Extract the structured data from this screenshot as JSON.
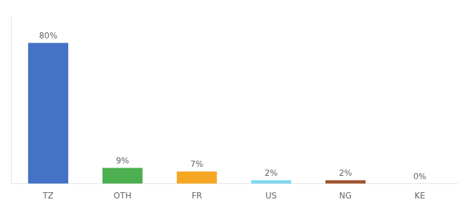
{
  "chart_data": {
    "type": "bar",
    "categories": [
      "TZ",
      "OTH",
      "FR",
      "US",
      "NG",
      "KE"
    ],
    "values": [
      80,
      9,
      7,
      2,
      2,
      0
    ],
    "value_labels": [
      "80%",
      "9%",
      "7%",
      "2%",
      "2%",
      "0%"
    ],
    "colors": [
      "#4472c4",
      "#4caf50",
      "#f5a623",
      "#7dd8f0",
      "#a0522d",
      "#cccccc"
    ],
    "ylim": [
      0,
      95
    ],
    "data_labels": true,
    "tick_labels": "x",
    "grid": false
  }
}
